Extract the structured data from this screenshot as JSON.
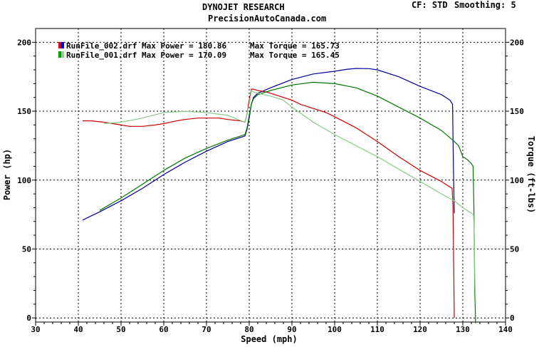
{
  "header": {
    "title": "DYNOJET RESEARCH",
    "subtitle": "PrecisionAutoCanada.com",
    "cf": "CF: STD",
    "smoothing": "Smoothing: 5"
  },
  "chart_data": {
    "type": "line",
    "xlabel": "Speed (mph)",
    "ylabel": "Power (hp)",
    "y2label": "Torque (ft-lbs)",
    "xlim": [
      30,
      140
    ],
    "ylim": [
      -3,
      210
    ],
    "xticks": [
      30,
      40,
      50,
      60,
      70,
      80,
      90,
      100,
      110,
      120,
      130,
      140
    ],
    "yticks": [
      0,
      50,
      100,
      150,
      200
    ],
    "grid": true,
    "legend_position": "top-left",
    "legend": [
      {
        "label": "RunFile_002.drf Max Power = 180.86",
        "torque_label": "Max Torque = 165.73",
        "colors": [
          "#e00000",
          "#0000e0"
        ]
      },
      {
        "label": "RunFile_001.drf Max Power = 170.09",
        "torque_label": "Max Torque = 165.45",
        "colors": [
          "#00a000",
          "#90d090"
        ]
      }
    ],
    "series": [
      {
        "color": "#000099",
        "x": [
          41,
          45,
          50,
          55,
          60,
          65,
          70,
          75,
          79,
          79.5,
          80,
          80.5,
          81,
          82,
          85,
          90,
          95,
          100,
          103,
          105,
          108,
          110,
          115,
          120,
          125,
          127,
          127.6,
          127.8,
          128
        ],
        "y": [
          71,
          77,
          85,
          94,
          104,
          113,
          121,
          128,
          132,
          137,
          145,
          155,
          160,
          163,
          167,
          173,
          177,
          179,
          180.5,
          181,
          180.9,
          180,
          175,
          168,
          162,
          158,
          155,
          110,
          76
        ]
      },
      {
        "color": "#cc0000",
        "x": [
          41,
          43,
          46,
          50,
          52,
          55,
          58,
          60,
          63,
          65,
          68,
          70,
          73,
          75,
          78,
          79,
          79.5,
          80,
          80.5,
          81,
          82,
          84,
          85,
          88,
          90,
          92,
          95,
          98,
          100,
          105,
          110,
          115,
          120,
          125,
          127.5,
          127.7,
          127.9,
          128
        ],
        "y": [
          143,
          143,
          142,
          140,
          139,
          139,
          140,
          141,
          143,
          144,
          145,
          145,
          145,
          144,
          143,
          142,
          148,
          158,
          166,
          166,
          165,
          164,
          163,
          160,
          158,
          155,
          152,
          149,
          146,
          138,
          128,
          117,
          107,
          99,
          94,
          80,
          30,
          0
        ]
      },
      {
        "color": "#007700",
        "x": [
          45,
          50,
          55,
          60,
          65,
          70,
          75,
          79,
          79.5,
          80,
          80.5,
          81,
          82,
          85,
          90,
          95,
          100,
          105,
          110,
          115,
          120,
          125,
          128,
          129,
          130,
          131,
          132,
          132.4,
          132.6,
          132.8,
          133
        ],
        "y": [
          78,
          87,
          97,
          107,
          116,
          123,
          129,
          133,
          138,
          147,
          155,
          159,
          162,
          165,
          169,
          171,
          170,
          167,
          161,
          153,
          145,
          136,
          128,
          125,
          117,
          115,
          112,
          110,
          80,
          20,
          -4
        ]
      },
      {
        "color": "#88cc88",
        "x": [
          46,
          50,
          55,
          60,
          65,
          70,
          75,
          79,
          80,
          80.5,
          81,
          82,
          85,
          88,
          90,
          95,
          100,
          105,
          110,
          115,
          120,
          125,
          128,
          130,
          132.5,
          132.7,
          132.8,
          133
        ],
        "y": [
          141,
          142,
          145,
          149,
          150,
          149,
          147,
          142,
          155,
          165,
          164,
          163,
          161,
          158,
          153,
          142,
          133,
          125,
          117,
          108,
          99,
          90,
          85,
          80,
          75,
          60,
          30,
          10
        ]
      }
    ]
  }
}
